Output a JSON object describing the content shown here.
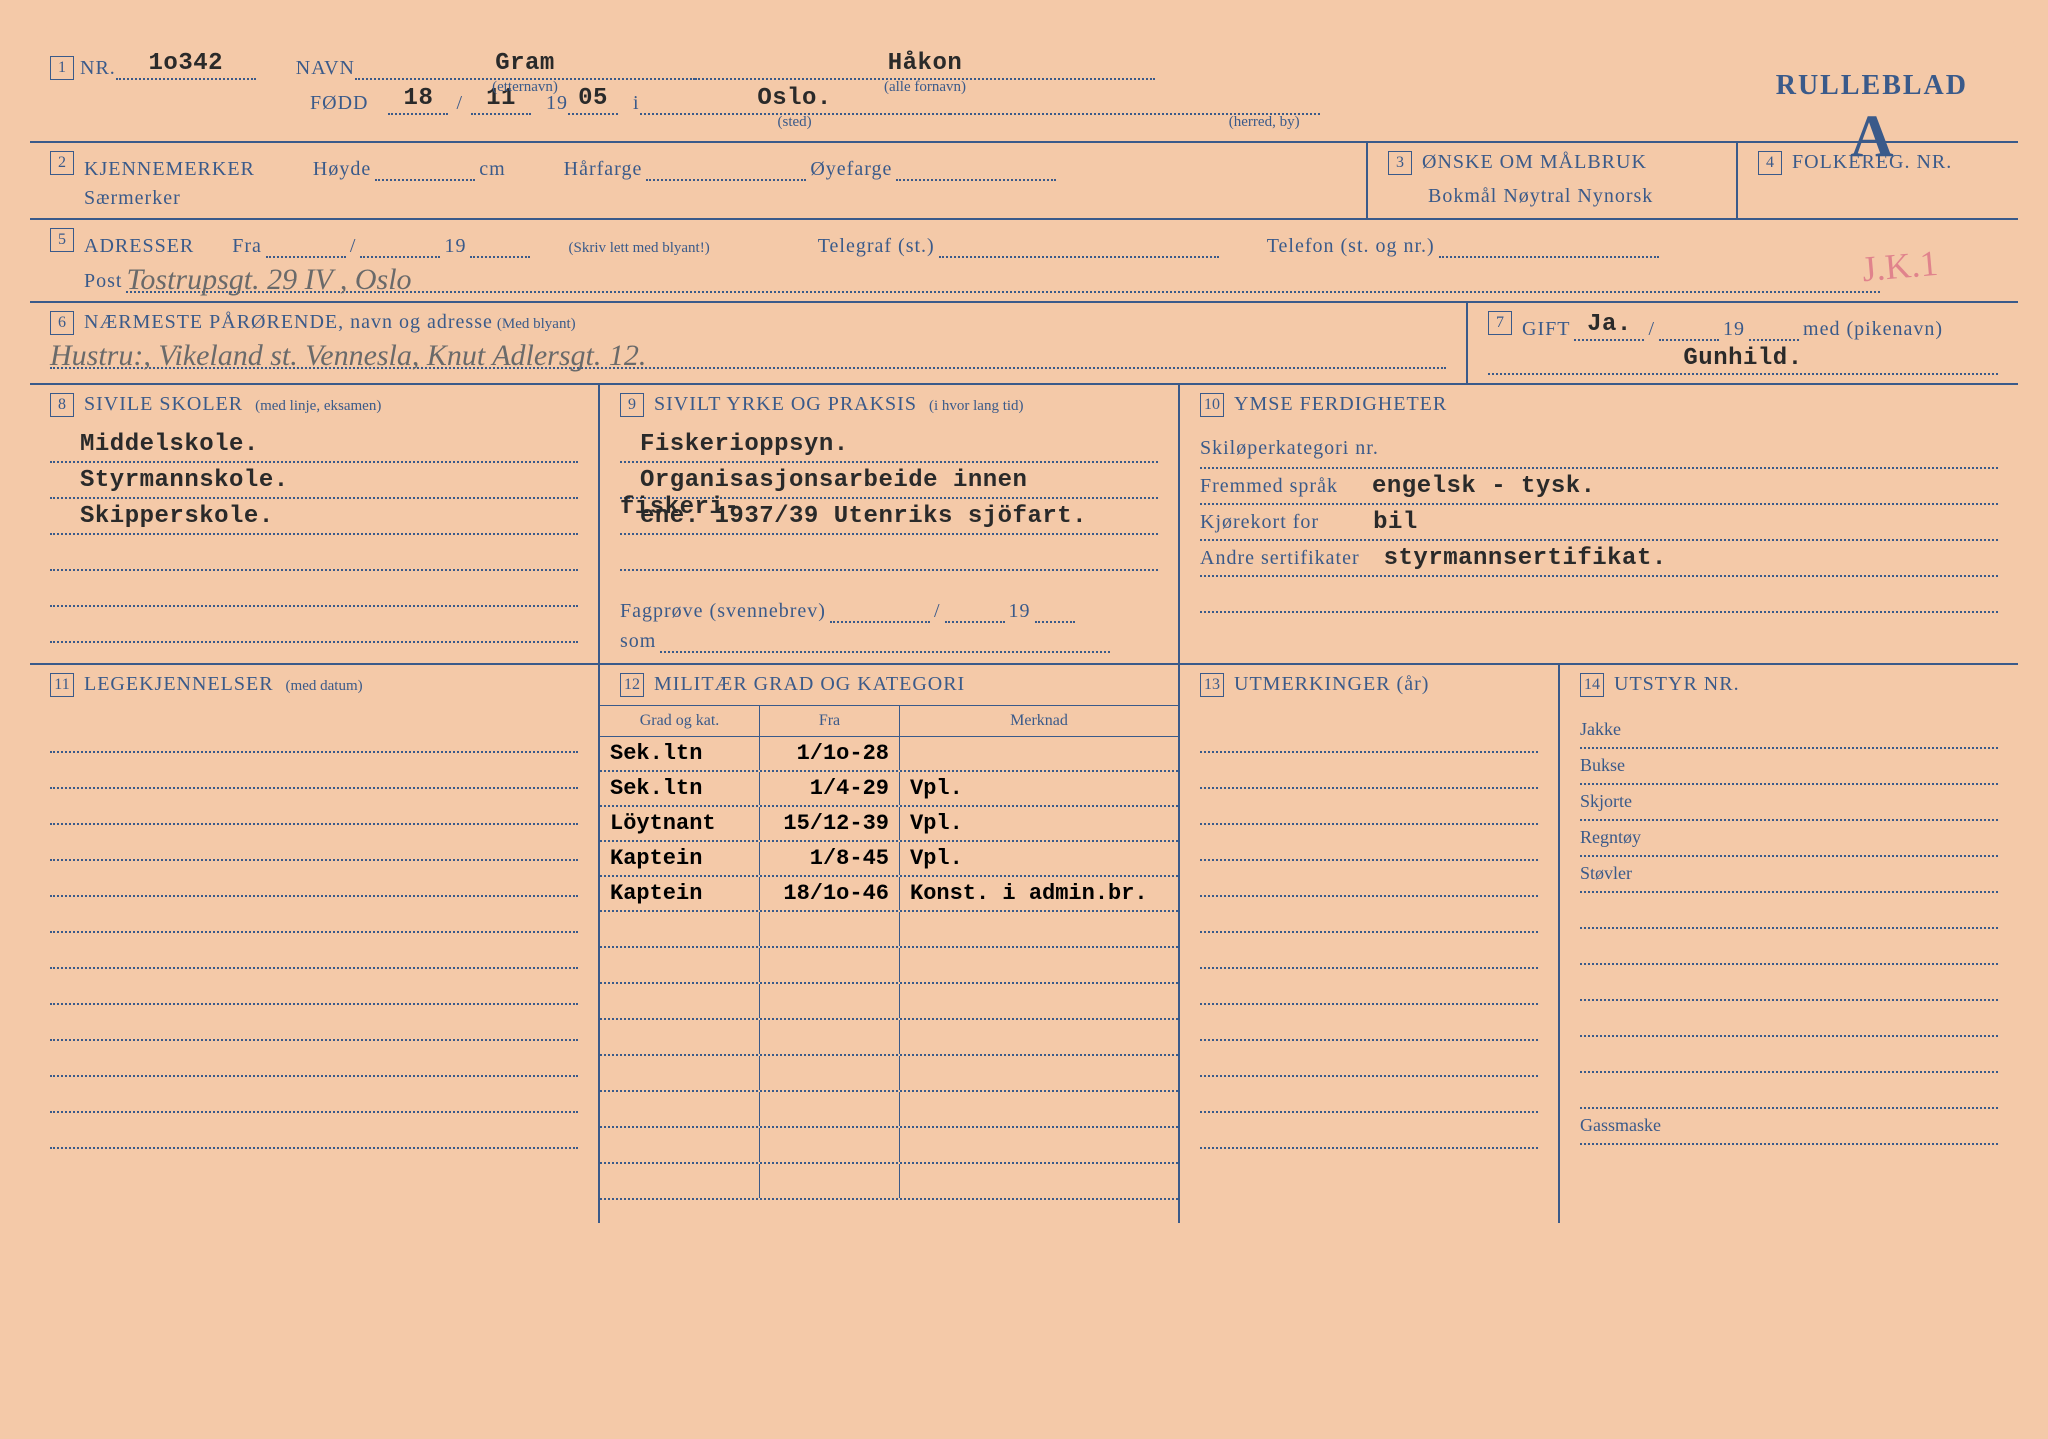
{
  "header": {
    "nr_label": "NR.",
    "nr_value": "1o342",
    "navn_label": "NAVN",
    "etternavn_sub": "(etternavn)",
    "etternavn": "Gram",
    "fornavn_sub": "(alle fornavn)",
    "fornavn": "Håkon",
    "fodd_label": "FØDD",
    "fodd_day": "18",
    "fodd_month": "11",
    "fodd_century": "19",
    "fodd_year": "05",
    "i_label": "i",
    "sted": "Oslo.",
    "sted_sub": "(sted)",
    "herred_sub": "(herred, by)",
    "rulleblad": "RULLEBLAD",
    "rulleblad_letter": "A"
  },
  "s2": {
    "kjennemerker": "KJENNEMERKER",
    "hoyde": "Høyde",
    "cm": "cm",
    "harfarge": "Hårfarge",
    "oyefarge": "Øyefarge",
    "saermerker": "Særmerker"
  },
  "s3": {
    "title": "ØNSKE OM MÅLBRUK",
    "opts": "Bokmål   Nøytral   Nynorsk"
  },
  "s4": {
    "title": "FOLKEREG. NR."
  },
  "s5": {
    "adresser": "ADRESSER",
    "fra": "Fra",
    "slash": "/",
    "y19": "19",
    "skriv": "(Skriv lett med blyant!)",
    "telegraf": "Telegraf (st.)",
    "telefon": "Telefon (st. og nr.)",
    "post": "Post",
    "address_hw": "Tostrupsgt. 29 IV , Oslo"
  },
  "s6": {
    "title": "NÆRMESTE PÅRØRENDE, navn og adresse",
    "sub": "(Med blyant)",
    "hw": "Hustru:, Vikeland st. Vennesla,  Knut Adlersgt. 12."
  },
  "s7": {
    "gift": "GIFT",
    "ja": "Ja.",
    "slash": "/",
    "y19": "19",
    "med": "med (pikenavn)",
    "name": "Gunhild."
  },
  "s8": {
    "title": "SIVILE SKOLER",
    "sub": "(med linje, eksamen)",
    "lines": [
      "Middelskole.",
      "Styrmannskole.",
      "Skipperskole."
    ]
  },
  "s9": {
    "title": "SIVILT YRKE OG PRAKSIS",
    "sub": "(i hvor lang tid)",
    "lines": [
      "Fiskerioppsyn.",
      "Organisasjonsarbeide innen fiskeri-",
      "ene. 1937/39 Utenriks sjöfart."
    ],
    "fagprove": "Fagprøve (svennebrev)",
    "slash": "/",
    "y19": "19",
    "som": "som"
  },
  "s10": {
    "title": "YMSE FERDIGHETER",
    "ski": "Skiløperkategori nr.",
    "fremmed": "Fremmed språk",
    "fremmed_v": "engelsk - tysk.",
    "kjorekort": "Kjørekort for",
    "kjorekort_v": "bil",
    "andre": "Andre sertifikater",
    "andre_v": "styrmannsertifikat."
  },
  "s11": {
    "title": "LEGEKJENNELSER",
    "sub": "(med datum)"
  },
  "s12": {
    "title": "MILITÆR GRAD OG KATEGORI",
    "col1": "Grad og kat.",
    "col2": "Fra",
    "col3": "Merknad",
    "rows": [
      {
        "grad": "Sek.ltn",
        "fra": "1/1o-28",
        "merk": ""
      },
      {
        "grad": "Sek.ltn",
        "fra": "1/4-29",
        "merk": "Vpl."
      },
      {
        "grad": "Löytnant",
        "fra": "15/12-39",
        "merk": "Vpl."
      },
      {
        "grad": "Kaptein",
        "fra": "1/8-45",
        "merk": "Vpl."
      },
      {
        "grad": "Kaptein",
        "fra": "18/1o-46",
        "merk": "Konst. i admin.br."
      }
    ]
  },
  "s13": {
    "title": "UTMERKINGER (år)"
  },
  "s14": {
    "title": "UTSTYR NR.",
    "items": [
      "Jakke",
      "Bukse",
      "Skjorte",
      "Regntøy",
      "Støvler"
    ],
    "gassmaske": "Gassmaske"
  },
  "red_note": "J.K.1"
}
